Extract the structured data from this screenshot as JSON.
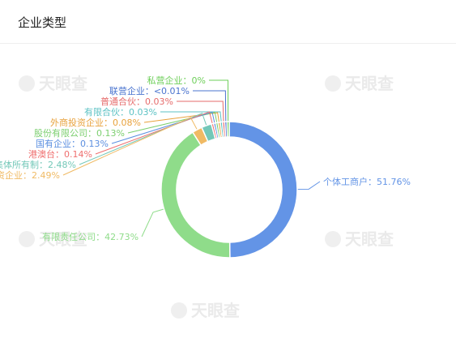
{
  "header": {
    "title": "企业类型"
  },
  "watermark": {
    "text": "天眼查"
  },
  "chart_data": {
    "type": "pie",
    "donut": true,
    "title": "企业类型",
    "label_sep": "：",
    "slices": [
      {
        "name": "个体工商户",
        "value": 51.76,
        "label": "51.76%",
        "color": "#6394e6"
      },
      {
        "name": "有限责任公司",
        "value": 42.73,
        "label": "42.73%",
        "color": "#8fdc8a"
      },
      {
        "name": "个人独资企业",
        "value": 2.49,
        "label": "2.49%",
        "color": "#f0ba64"
      },
      {
        "name": "集体所有制",
        "value": 2.48,
        "label": "2.48%",
        "color": "#73c8b8"
      },
      {
        "name": "港澳台",
        "value": 0.14,
        "label": "0.14%",
        "color": "#ef6f6f"
      },
      {
        "name": "国有企业",
        "value": 0.13,
        "label": "0.13%",
        "color": "#5b8fe0"
      },
      {
        "name": "股份有限公司",
        "value": 0.13,
        "label": "0.13%",
        "color": "#7ccf6f"
      },
      {
        "name": "外商投资企业",
        "value": 0.08,
        "label": "0.08%",
        "color": "#e8a23c"
      },
      {
        "name": "有限合伙",
        "value": 0.03,
        "label": "0.03%",
        "color": "#5cc2c4"
      },
      {
        "name": "普通合伙",
        "value": 0.03,
        "label": "0.03%",
        "color": "#e66b6b"
      },
      {
        "name": "联营企业",
        "value": 0.005,
        "label": "<0.01%",
        "color": "#4a74cf"
      },
      {
        "name": "私营企业",
        "value": 0,
        "label": "0%",
        "color": "#6ecf5a"
      }
    ]
  }
}
